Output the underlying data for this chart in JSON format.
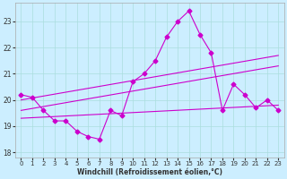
{
  "xlabel": "Windchill (Refroidissement éolien,°C)",
  "bg_color": "#cceeff",
  "line_color": "#cc00cc",
  "grid_color": "#aadddd",
  "xlim": [
    -0.5,
    23.5
  ],
  "ylim": [
    17.8,
    23.7
  ],
  "yticks": [
    18,
    19,
    20,
    21,
    22,
    23
  ],
  "xticks": [
    0,
    1,
    2,
    3,
    4,
    5,
    6,
    7,
    8,
    9,
    10,
    11,
    12,
    13,
    14,
    15,
    16,
    17,
    18,
    19,
    20,
    21,
    22,
    23
  ],
  "line1_x": [
    0,
    1,
    2,
    3,
    4,
    5,
    6,
    7,
    8,
    9,
    10,
    11,
    12,
    13,
    14,
    15,
    16,
    17,
    18,
    19,
    20,
    21,
    22,
    23
  ],
  "line1_y": [
    20.2,
    20.1,
    19.6,
    19.2,
    19.2,
    18.8,
    18.6,
    18.5,
    19.6,
    19.4,
    20.7,
    21.0,
    21.5,
    22.4,
    23.0,
    23.4,
    22.5,
    21.8,
    19.6,
    20.6,
    20.2,
    19.7,
    20.0,
    19.6
  ],
  "line2_x": [
    0,
    23
  ],
  "line2_y": [
    20.0,
    21.7
  ],
  "line3_x": [
    0,
    23
  ],
  "line3_y": [
    19.6,
    21.3
  ],
  "line4_x": [
    0,
    23
  ],
  "line4_y": [
    19.3,
    19.8
  ],
  "marker": "D",
  "markersize": 2.5,
  "linewidth": 0.8
}
